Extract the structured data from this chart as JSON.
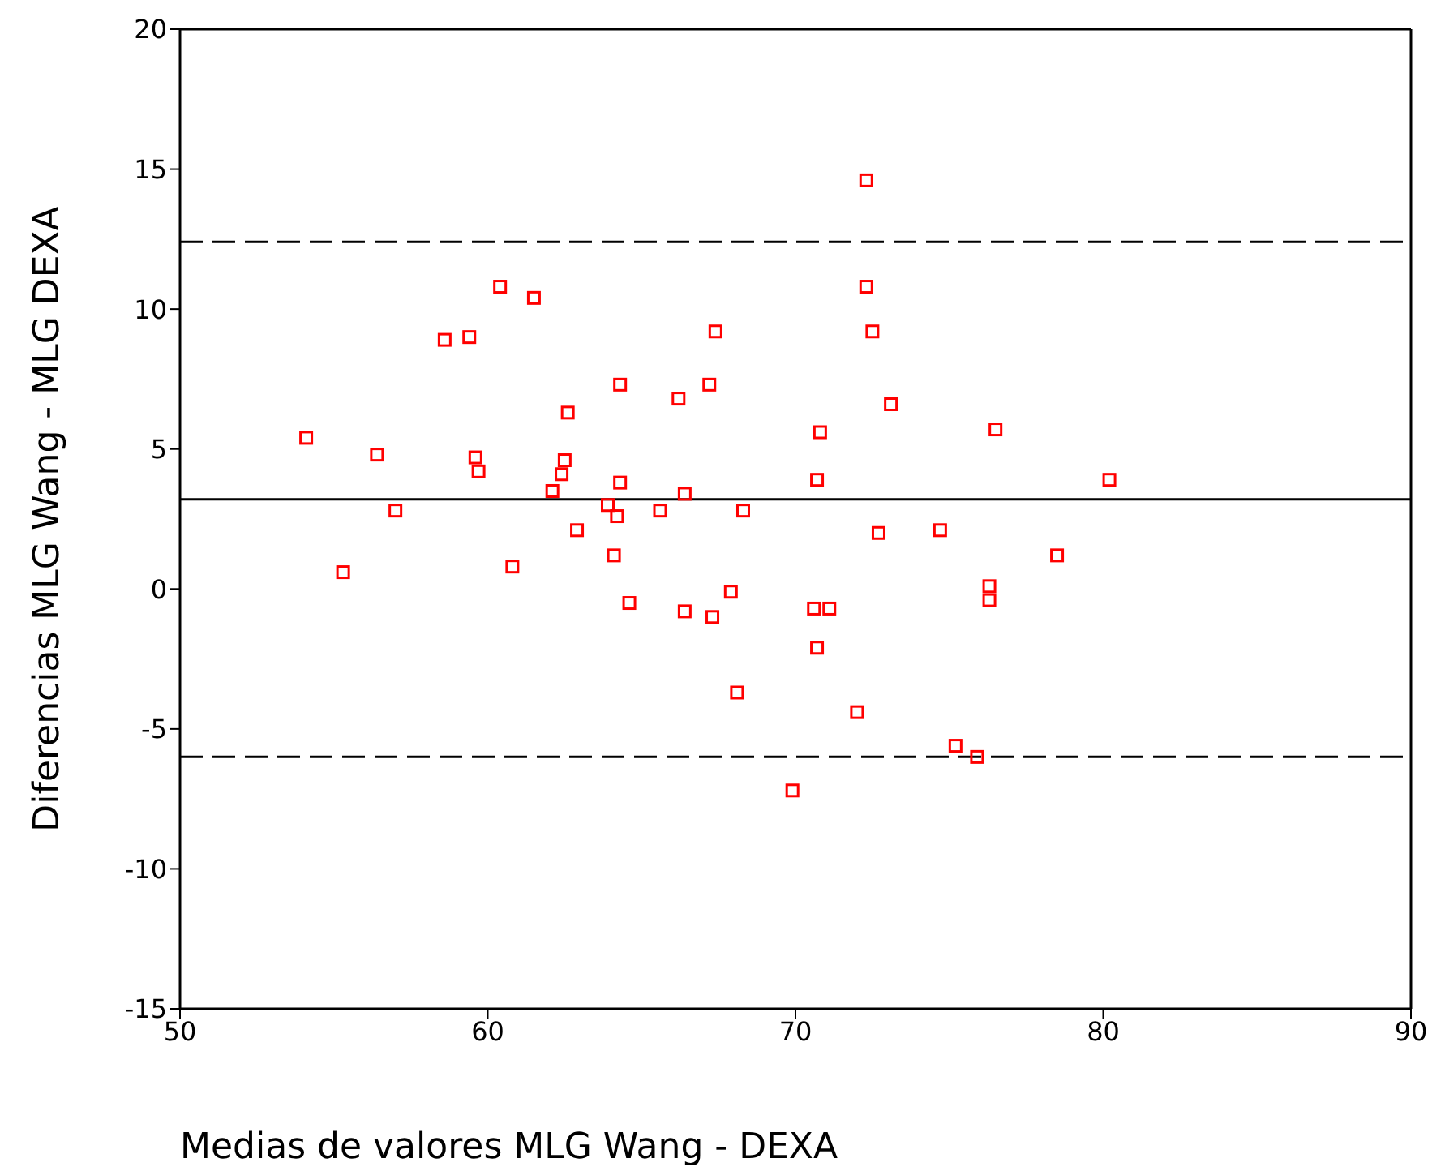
{
  "chart_data": {
    "type": "scatter",
    "xlabel": "Medias de valores MLG Wang - DEXA",
    "ylabel": "Diferencias MLG Wang - MLG DEXA",
    "x": [
      54.1,
      55.3,
      56.4,
      57.0,
      58.6,
      59.4,
      59.6,
      59.7,
      60.4,
      60.8,
      61.5,
      62.1,
      62.4,
      62.5,
      62.6,
      62.9,
      63.9,
      64.1,
      64.2,
      64.3,
      64.3,
      64.6,
      65.6,
      66.2,
      66.4,
      66.4,
      67.2,
      67.3,
      67.4,
      67.9,
      68.1,
      68.3,
      69.9,
      70.6,
      70.7,
      70.7,
      70.8,
      71.1,
      72.0,
      72.3,
      72.3,
      72.5,
      72.7,
      73.1,
      74.7,
      75.2,
      75.9,
      76.3,
      76.3,
      76.5,
      78.5,
      80.2
    ],
    "series": [
      {
        "color": "#ff0000",
        "values": [
          5.4,
          0.6,
          4.8,
          2.8,
          8.9,
          9.0,
          4.7,
          4.2,
          10.8,
          0.8,
          10.4,
          3.5,
          4.1,
          4.6,
          6.3,
          2.1,
          3.0,
          1.2,
          2.6,
          7.3,
          3.8,
          -0.5,
          2.8,
          6.8,
          3.4,
          -0.8,
          7.3,
          -1.0,
          9.2,
          -0.1,
          -3.7,
          2.8,
          -7.2,
          -0.7,
          -2.1,
          3.9,
          5.6,
          -0.7,
          -4.4,
          10.8,
          14.6,
          9.2,
          2.0,
          6.6,
          2.1,
          -5.6,
          -6.0,
          0.1,
          -0.4,
          5.7,
          1.2,
          3.9
        ]
      }
    ],
    "xlim": [
      50,
      90
    ],
    "xticks": [
      50,
      60,
      70,
      80,
      90
    ],
    "ylim": [
      -15,
      20
    ],
    "yticks": [
      -15,
      -10,
      -5,
      0,
      5,
      10,
      15,
      20
    ],
    "marker": "square",
    "ref_lines": [
      {
        "axis": "y",
        "value": 3.2,
        "line_style": "solid",
        "color": "#000000"
      },
      {
        "axis": "y",
        "value": 12.4,
        "line_style": "dashed",
        "color": "#000000"
      },
      {
        "axis": "y",
        "value": -6.0,
        "line_style": "dashed",
        "color": "#000000"
      }
    ]
  }
}
